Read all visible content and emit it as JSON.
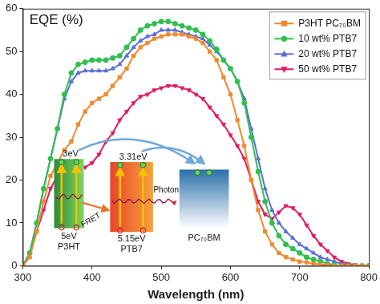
{
  "chart_data": {
    "type": "line",
    "x_label": "Wavelength (nm)",
    "annotations": {
      "corner_label": "EQE (%)",
      "inset": {
        "materials": [
          {
            "name": "P3HT",
            "lumo": "3eV",
            "homo": "5eV"
          },
          {
            "name": "PTB7",
            "lumo": "3.31eV",
            "homo": "5.15eV"
          },
          {
            "name": "PC₇₀BM"
          }
        ],
        "transfers": [
          "FRET",
          "Photon"
        ]
      }
    },
    "x": [
      300,
      310,
      320,
      330,
      340,
      350,
      360,
      370,
      380,
      390,
      400,
      410,
      420,
      430,
      440,
      450,
      460,
      470,
      480,
      490,
      500,
      510,
      520,
      530,
      540,
      550,
      560,
      570,
      580,
      590,
      600,
      610,
      620,
      630,
      640,
      650,
      660,
      670,
      680,
      690,
      700,
      710,
      720,
      730,
      740,
      750,
      760,
      770,
      780,
      790,
      800
    ],
    "series": [
      {
        "name": "P3HT PC₇₀BM",
        "color": "#ef8a2e",
        "marker": "square",
        "values": [
          0,
          2,
          8,
          15,
          21,
          24,
          27,
          29,
          33,
          36,
          38,
          39,
          40,
          42,
          44,
          46,
          49,
          51,
          52,
          53,
          53.5,
          54,
          54,
          54,
          53.5,
          53,
          52,
          50,
          48,
          44,
          40,
          34,
          28,
          20,
          13,
          8,
          5,
          3,
          2,
          1.5,
          1,
          0.8,
          0.5,
          0.3,
          0.2,
          0,
          0,
          0,
          0,
          0,
          0
        ]
      },
      {
        "name": "10 wt% PTB7",
        "color": "#2fbf4f",
        "marker": "circle",
        "values": [
          0,
          3,
          10,
          18,
          25,
          32,
          40,
          45,
          47,
          47.5,
          48,
          48,
          48,
          48.5,
          49,
          51,
          53,
          55,
          56,
          56.5,
          57,
          57,
          56.5,
          56,
          55.5,
          55,
          54,
          52.5,
          50.5,
          48,
          46,
          43,
          38,
          30,
          22,
          15,
          10,
          7,
          5,
          4,
          3,
          2,
          1.5,
          1,
          0.5,
          0.2,
          0,
          0,
          0,
          0,
          0
        ]
      },
      {
        "name": "20 wt% PTB7",
        "color": "#5c6fd8",
        "marker": "triangle",
        "values": [
          0,
          3,
          10,
          18,
          25,
          32,
          39,
          43,
          45,
          45.5,
          45.5,
          45.5,
          45.5,
          46,
          47,
          49,
          51,
          52.5,
          53.5,
          54,
          55,
          55,
          55,
          54.5,
          54,
          53.5,
          53,
          51.5,
          50,
          48,
          46,
          43,
          39,
          32,
          25,
          18,
          13,
          10,
          8,
          6.5,
          5,
          4,
          3,
          2,
          1.5,
          1,
          0.5,
          0.2,
          0,
          0,
          0
        ]
      },
      {
        "name": "50 wt% PTB7",
        "color": "#e5195f",
        "marker": "triangle_down",
        "values": [
          0,
          3,
          8,
          13,
          18,
          21,
          22,
          22.5,
          23,
          23,
          24,
          26,
          29,
          31,
          34,
          36,
          38,
          39.5,
          40,
          41,
          41.5,
          42,
          42,
          41.5,
          41,
          40,
          39,
          37,
          35,
          33,
          30.5,
          28,
          25,
          20,
          15,
          12,
          11,
          12.5,
          14,
          13.5,
          12,
          9.5,
          7,
          5,
          3.5,
          2,
          1,
          0.5,
          0.2,
          0,
          0
        ]
      }
    ],
    "xlim": [
      300,
      800
    ],
    "xticks": [
      300,
      400,
      500,
      600,
      700,
      800
    ],
    "ylim": [
      0,
      60
    ],
    "yticks": [
      0,
      10,
      20,
      30,
      40,
      50,
      60
    ],
    "grid": false,
    "legend": "upper right"
  }
}
